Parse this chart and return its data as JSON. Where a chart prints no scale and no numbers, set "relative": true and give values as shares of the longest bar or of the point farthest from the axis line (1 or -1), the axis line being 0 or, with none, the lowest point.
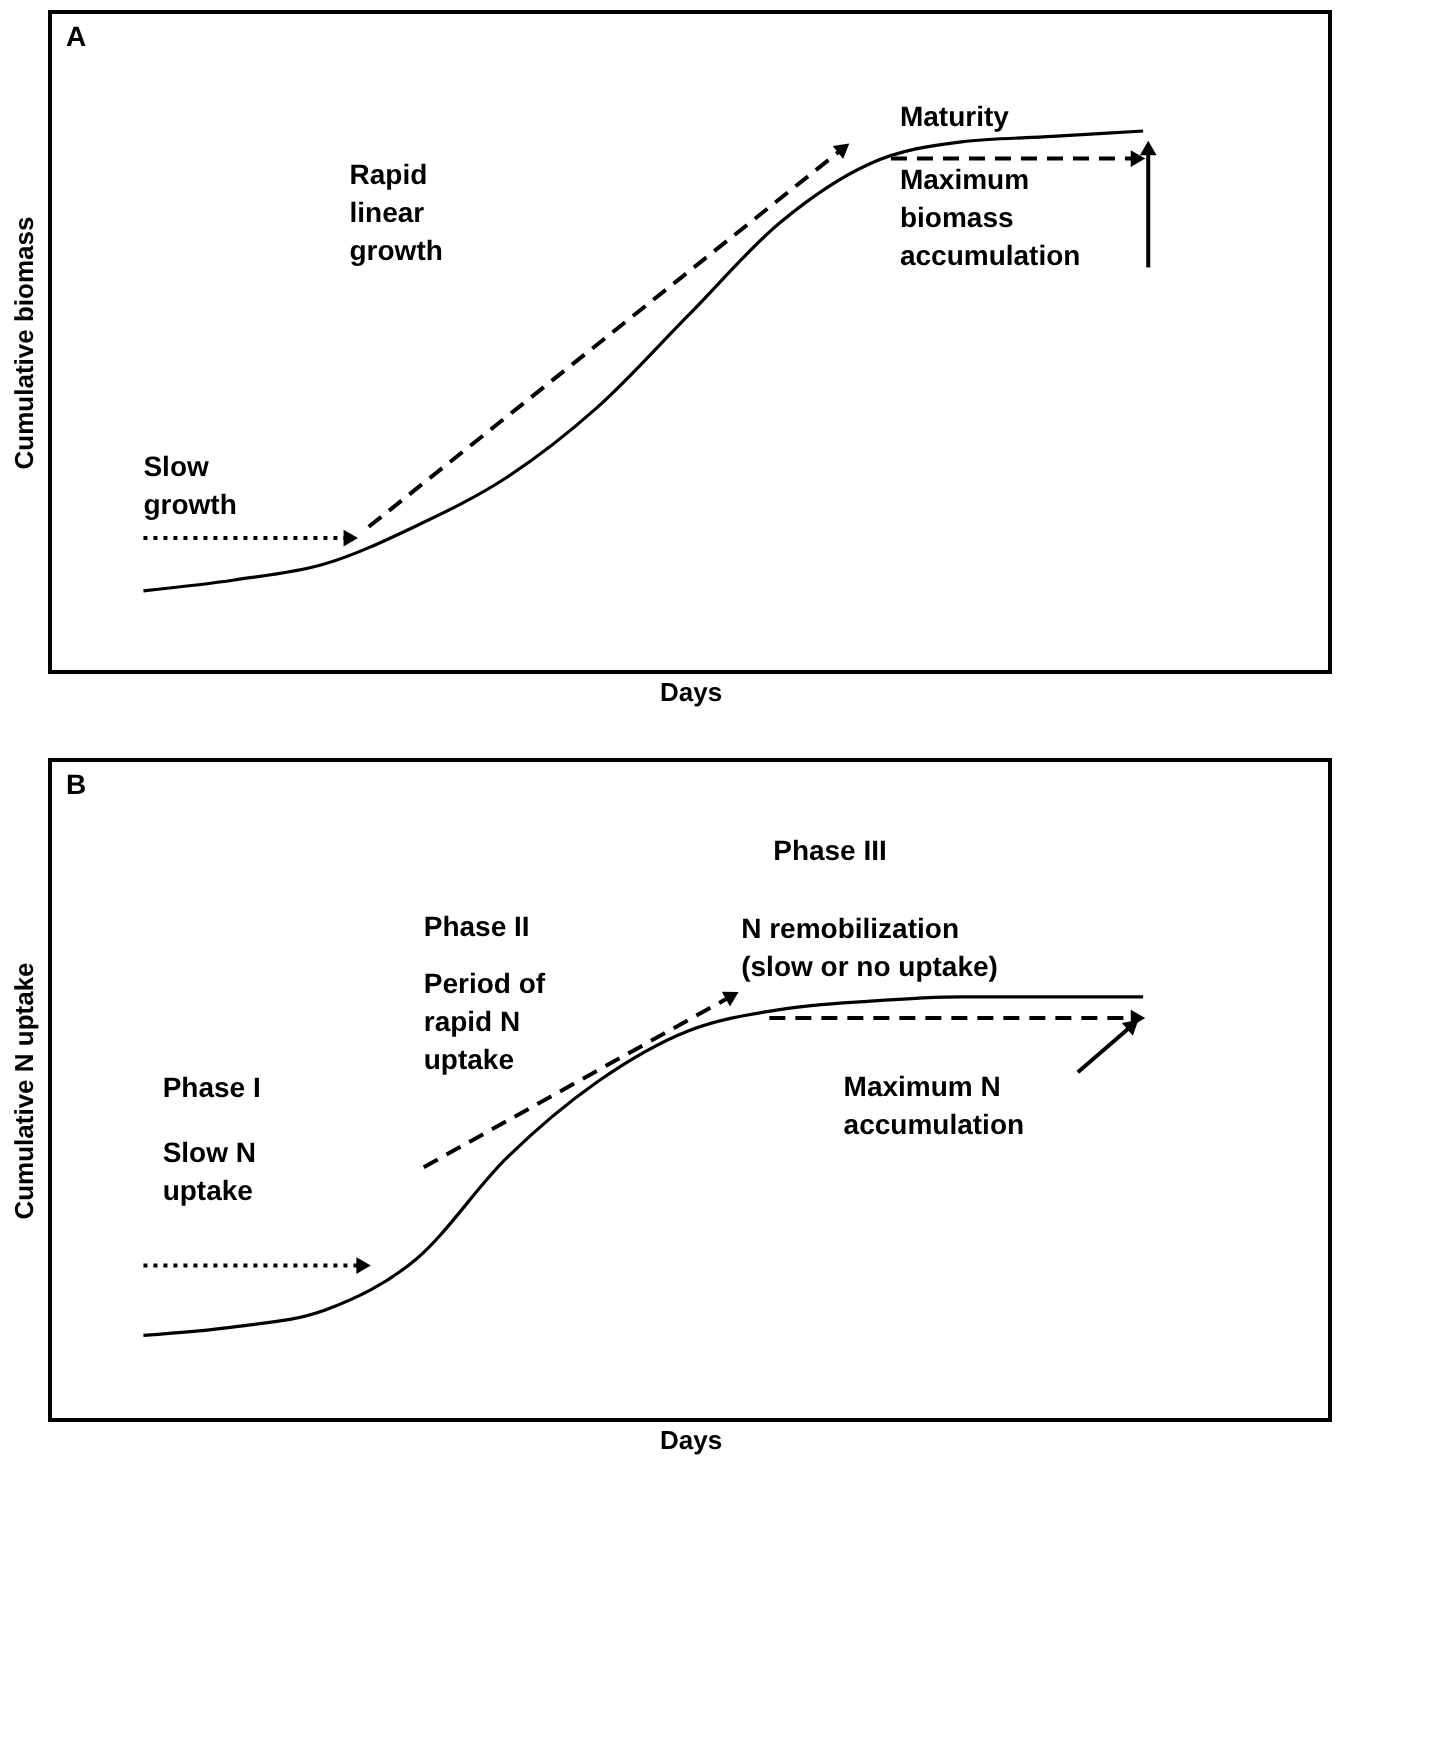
{
  "chart_data": [
    {
      "type": "line",
      "title": "A",
      "xlabel": "Days",
      "ylabel": "Cumulative biomass",
      "relative": true,
      "color": "#000000",
      "line_style": "solid",
      "categories": [
        null,
        null,
        null,
        null,
        null,
        null,
        null,
        null,
        null,
        null,
        null,
        null
      ],
      "values": [
        0.15,
        0.17,
        0.2,
        0.27,
        0.36,
        0.49,
        0.66,
        0.83,
        0.94,
        0.98,
        0.99,
        1.0
      ],
      "annotations": [
        "Slow\ngrowth",
        "Rapid\nlinear\ngrowth",
        "Maturity",
        "Maximum\nbiomass\naccumulation"
      ]
    },
    {
      "type": "line",
      "title": "B",
      "xlabel": "Days",
      "ylabel": "Cumulative N uptake",
      "relative": true,
      "color": "#000000",
      "line_style": "solid",
      "categories": [
        null,
        null,
        null,
        null,
        null,
        null,
        null,
        null,
        null,
        null,
        null,
        null
      ],
      "values": [
        0.2,
        0.22,
        0.26,
        0.38,
        0.62,
        0.8,
        0.92,
        0.97,
        0.99,
        1.0,
        1.0,
        1.0
      ],
      "annotations": [
        "Phase I",
        "Slow N\nuptake",
        "Phase II",
        "Period of\nrapid N\nuptake",
        "Phase III",
        "N remobilization\n(slow or no uptake)",
        "Maximum N\naccumulation"
      ]
    }
  ]
}
